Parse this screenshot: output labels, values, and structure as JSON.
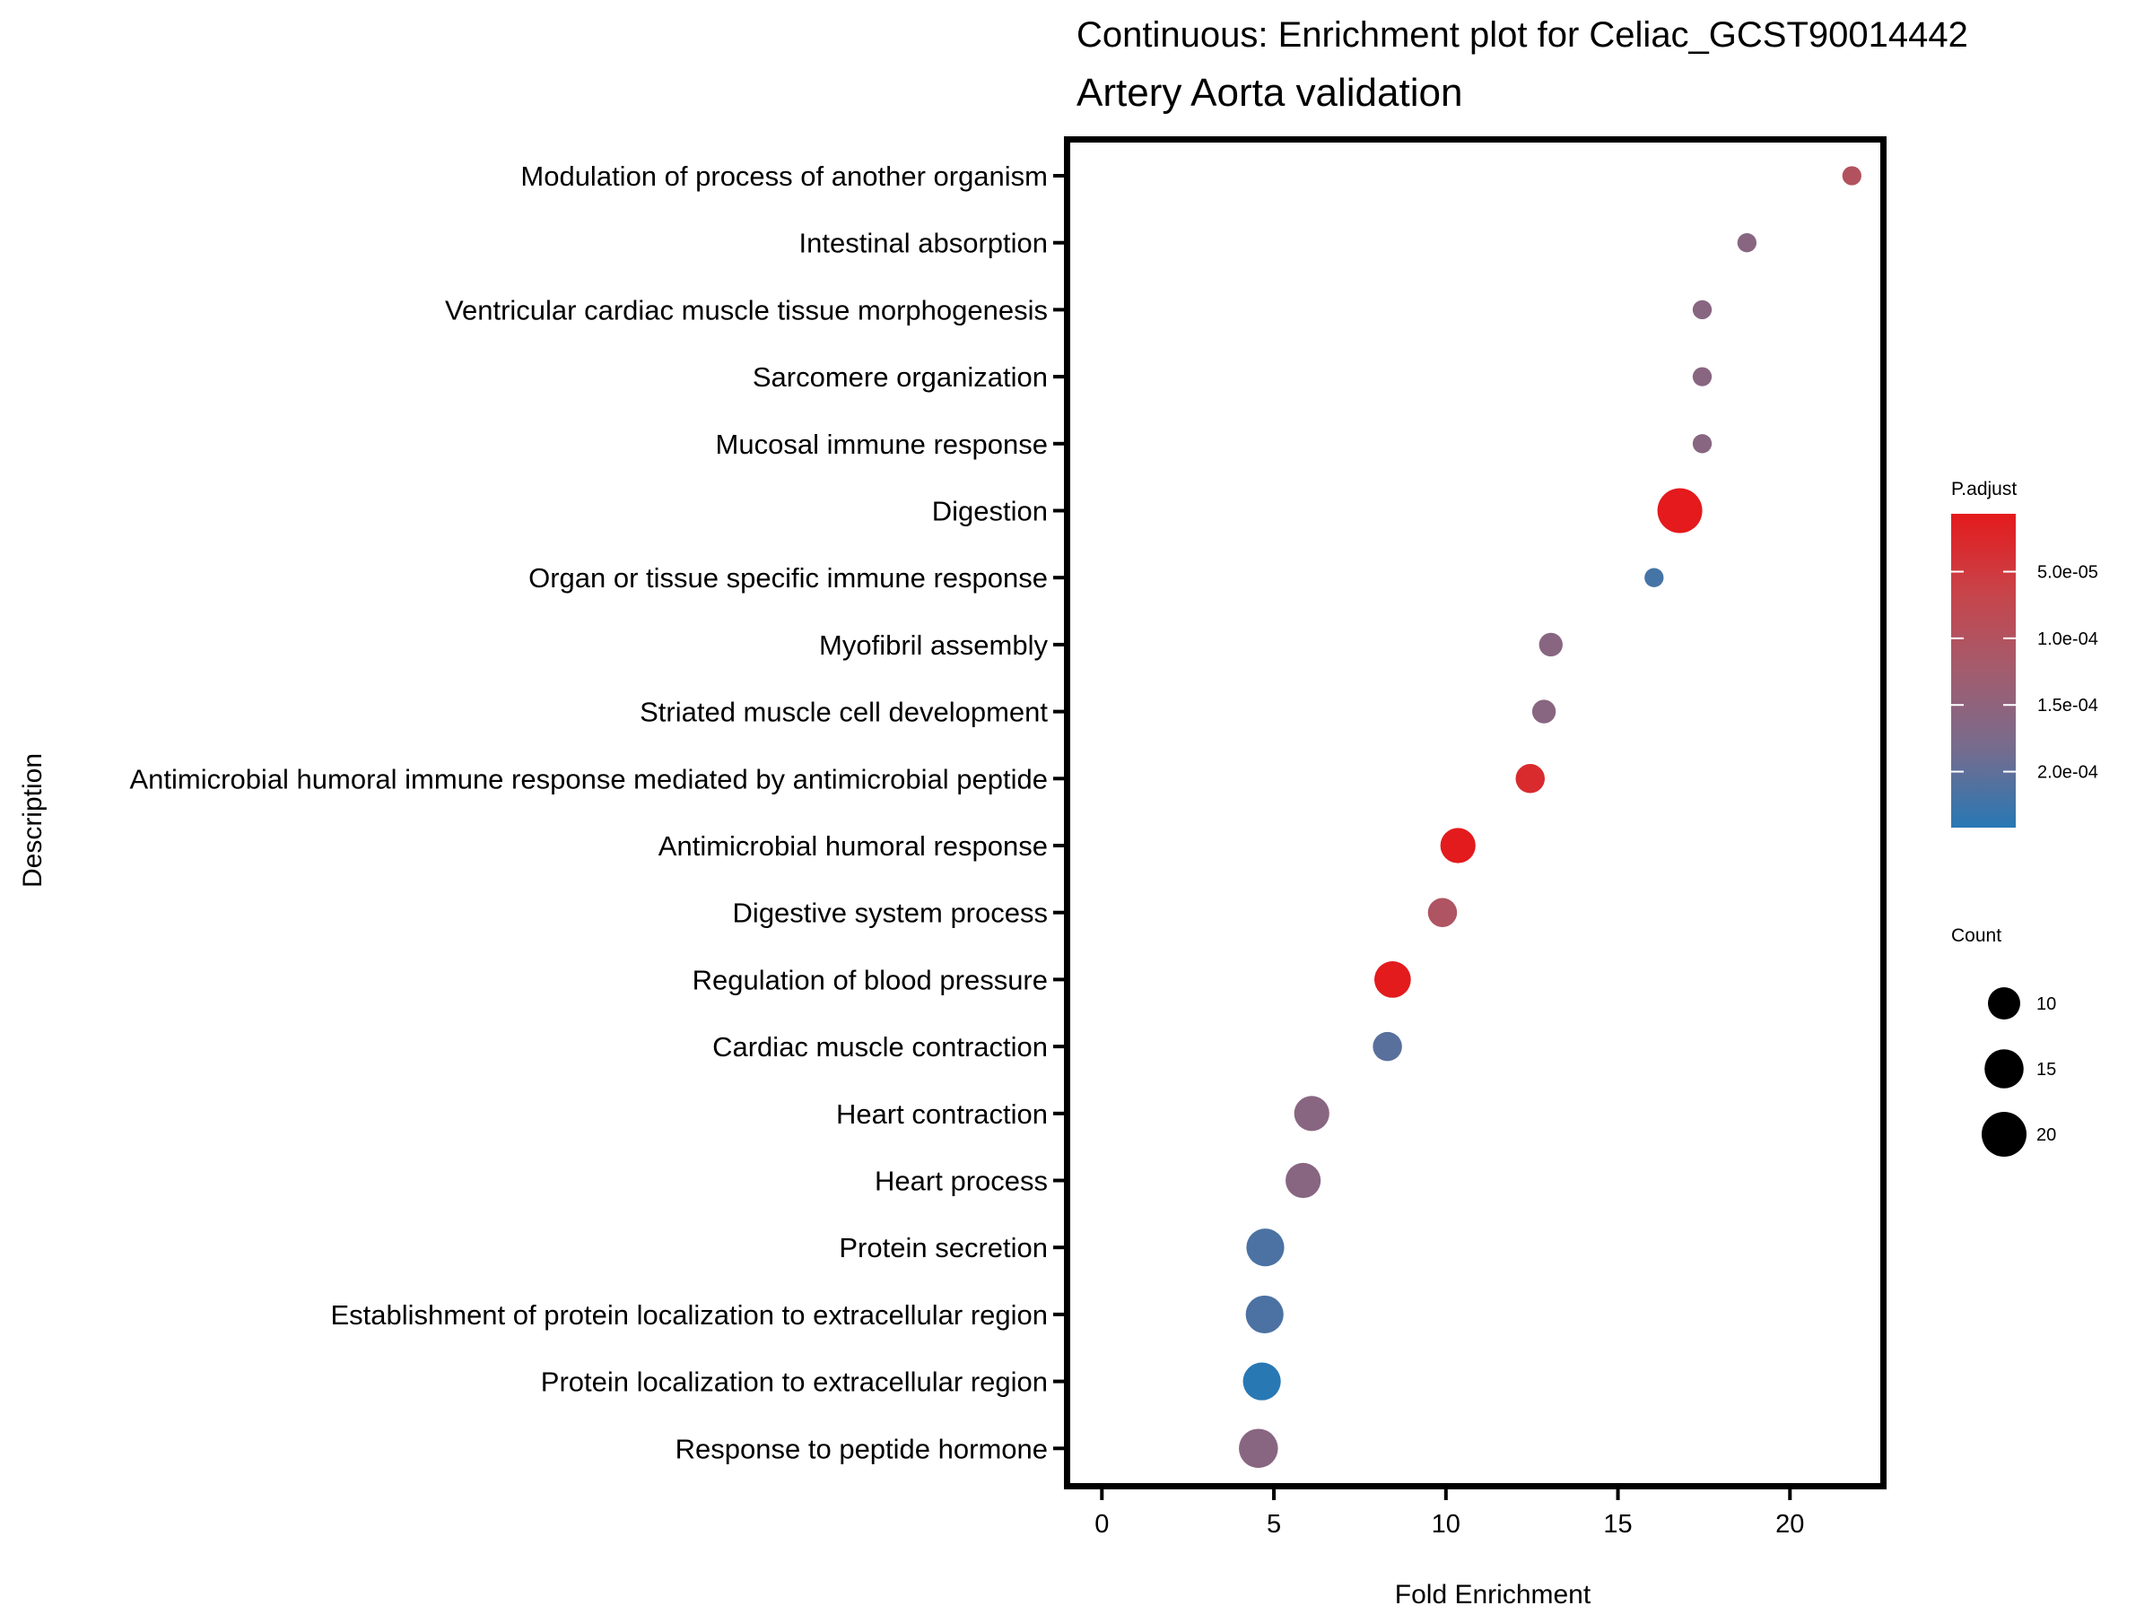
{
  "chart_data": {
    "type": "scatter",
    "title": "Continuous: Enrichment plot for Celiac_GCST90014442",
    "subtitle": "Artery Aorta validation",
    "xlabel": "Fold Enrichment",
    "ylabel": "Description",
    "xlim": [
      -1,
      22.8
    ],
    "xticks": [
      0,
      5,
      10,
      15,
      20
    ],
    "xtick_labels": [
      "0",
      "5",
      "10",
      "15",
      "20"
    ],
    "grid": false,
    "categories": [
      "Modulation of process of another organism",
      "Intestinal absorption",
      "Ventricular cardiac muscle tissue morphogenesis",
      "Sarcomere organization",
      "Mucosal immune response",
      "Digestion",
      "Organ or tissue specific immune response",
      "Myofibril assembly",
      "Striated muscle cell development",
      "Antimicrobial humoral immune response mediated by antimicrobial peptide",
      "Antimicrobial humoral response",
      "Digestive system process",
      "Regulation of blood pressure",
      "Cardiac muscle contraction",
      "Heart contraction",
      "Heart process",
      "Protein secretion",
      "Establishment of protein localization to extracellular region",
      "Protein localization to extracellular region",
      "Response to peptide hormone"
    ],
    "points": [
      {
        "description": "Modulation of process of another organism",
        "fold_enrichment": 21.8,
        "count": 3,
        "p_adjust": 0.0001
      },
      {
        "description": "Intestinal absorption",
        "fold_enrichment": 18.75,
        "count": 3,
        "p_adjust": 0.00016
      },
      {
        "description": "Ventricular cardiac muscle tissue morphogenesis",
        "fold_enrichment": 17.45,
        "count": 3,
        "p_adjust": 0.00016
      },
      {
        "description": "Sarcomere organization",
        "fold_enrichment": 17.45,
        "count": 3,
        "p_adjust": 0.00016
      },
      {
        "description": "Mucosal immune response",
        "fold_enrichment": 17.45,
        "count": 3,
        "p_adjust": 0.00016
      },
      {
        "description": "Digestion",
        "fold_enrichment": 16.8,
        "count": 20,
        "p_adjust": 7e-06
      },
      {
        "description": "Organ or tissue specific immune response",
        "fold_enrichment": 16.05,
        "count": 3,
        "p_adjust": 0.00022
      },
      {
        "description": "Myofibril assembly",
        "fold_enrichment": 13.05,
        "count": 5,
        "p_adjust": 0.00016
      },
      {
        "description": "Striated muscle cell development",
        "fold_enrichment": 12.85,
        "count": 5,
        "p_adjust": 0.00016
      },
      {
        "description": "Antimicrobial humoral immune response mediated by antimicrobial peptide",
        "fold_enrichment": 12.45,
        "count": 8,
        "p_adjust": 3e-05
      },
      {
        "description": "Antimicrobial humoral response",
        "fold_enrichment": 10.35,
        "count": 12,
        "p_adjust": 8e-06
      },
      {
        "description": "Digestive system process",
        "fold_enrichment": 9.9,
        "count": 8,
        "p_adjust": 0.000105
      },
      {
        "description": "Regulation of blood pressure",
        "fold_enrichment": 8.45,
        "count": 13,
        "p_adjust": 8e-06
      },
      {
        "description": "Cardiac muscle contraction",
        "fold_enrichment": 8.3,
        "count": 8,
        "p_adjust": 0.000205
      },
      {
        "description": "Heart contraction",
        "fold_enrichment": 6.1,
        "count": 12,
        "p_adjust": 0.00016
      },
      {
        "description": "Heart process",
        "fold_enrichment": 5.85,
        "count": 12,
        "p_adjust": 0.00016
      },
      {
        "description": "Protein secretion",
        "fold_enrichment": 4.75,
        "count": 14,
        "p_adjust": 0.000215
      },
      {
        "description": "Establishment of protein localization to extracellular region",
        "fold_enrichment": 4.73,
        "count": 14,
        "p_adjust": 0.000215
      },
      {
        "description": "Protein localization to extracellular region",
        "fold_enrichment": 4.65,
        "count": 14,
        "p_adjust": 0.000242
      },
      {
        "description": "Response to peptide hormone",
        "fold_enrichment": 4.55,
        "count": 15,
        "p_adjust": 0.00016
      }
    ],
    "color_legend": {
      "title": "P.adjust",
      "range": [
        6.6e-06,
        0.000242
      ],
      "ticks": [
        5e-05,
        0.0001,
        0.00015,
        0.0002
      ],
      "tick_labels": [
        "5.0e-05",
        "1.0e-04",
        "1.5e-04",
        "2.0e-04"
      ],
      "low_color": "#E41A1C",
      "high_color": "#2878B4",
      "placement": "right"
    },
    "size_legend": {
      "title": "Count",
      "values": [
        10,
        15,
        20
      ],
      "labels": [
        "10",
        "15",
        "20"
      ],
      "color": "#000000",
      "placement": "right"
    }
  }
}
